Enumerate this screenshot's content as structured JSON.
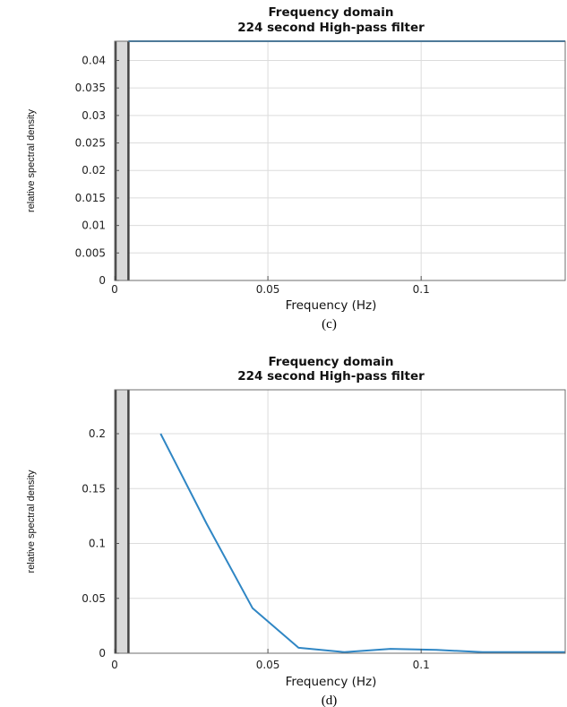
{
  "chart_data": [
    {
      "type": "line",
      "title": [
        "Frequency domain",
        "224 second High-pass filter"
      ],
      "xlabel": "Frequency (Hz)",
      "ylabel": "relative spectral density",
      "caption": "(c)",
      "xlim": [
        0,
        0.147
      ],
      "ylim": [
        0,
        0.0435
      ],
      "xticks": [
        0,
        0.05,
        0.1
      ],
      "xtick_labels": [
        "0",
        "0.05",
        "0.1"
      ],
      "yticks": [
        0,
        0.005,
        0.01,
        0.015,
        0.02,
        0.025,
        0.03,
        0.035,
        0.04
      ],
      "ytick_labels": [
        "0",
        "0.005",
        "0.01",
        "0.015",
        "0.02",
        "0.025",
        "0.03",
        "0.035",
        "0.04"
      ],
      "grid": true,
      "filter_band": [
        0,
        0.0045
      ],
      "series": [
        {
          "x": [
            0.0045,
            0.015,
            0.03,
            0.045,
            0.06,
            0.075,
            0.09,
            0.105,
            0.12,
            0.135,
            0.147
          ],
          "y": [
            0.0435,
            0.0435,
            0.0435,
            0.0435,
            0.0435,
            0.0435,
            0.0435,
            0.0435,
            0.0435,
            0.0435,
            0.0435
          ],
          "color": "#2f86c4"
        }
      ]
    },
    {
      "type": "line",
      "title": [
        "Frequency domain",
        "224 second High-pass filter"
      ],
      "xlabel": "Frequency (Hz)",
      "ylabel": "relative spectral density",
      "caption": "(d)",
      "xlim": [
        0,
        0.147
      ],
      "ylim": [
        0,
        0.24
      ],
      "xticks": [
        0,
        0.05,
        0.1
      ],
      "xtick_labels": [
        "0",
        "0.05",
        "0.1"
      ],
      "yticks": [
        0,
        0.05,
        0.1,
        0.15,
        0.2
      ],
      "ytick_labels": [
        "0",
        "0.05",
        "0.1",
        "0.15",
        "0.2"
      ],
      "grid": true,
      "filter_band": [
        0,
        0.0045
      ],
      "series": [
        {
          "x": [
            0.015,
            0.03,
            0.045,
            0.06,
            0.075,
            0.09,
            0.105,
            0.12,
            0.135,
            0.147
          ],
          "y": [
            0.2,
            0.118,
            0.041,
            0.005,
            0.001,
            0.004,
            0.003,
            0.001,
            0.001,
            0.001
          ],
          "color": "#2f86c4"
        }
      ]
    }
  ]
}
